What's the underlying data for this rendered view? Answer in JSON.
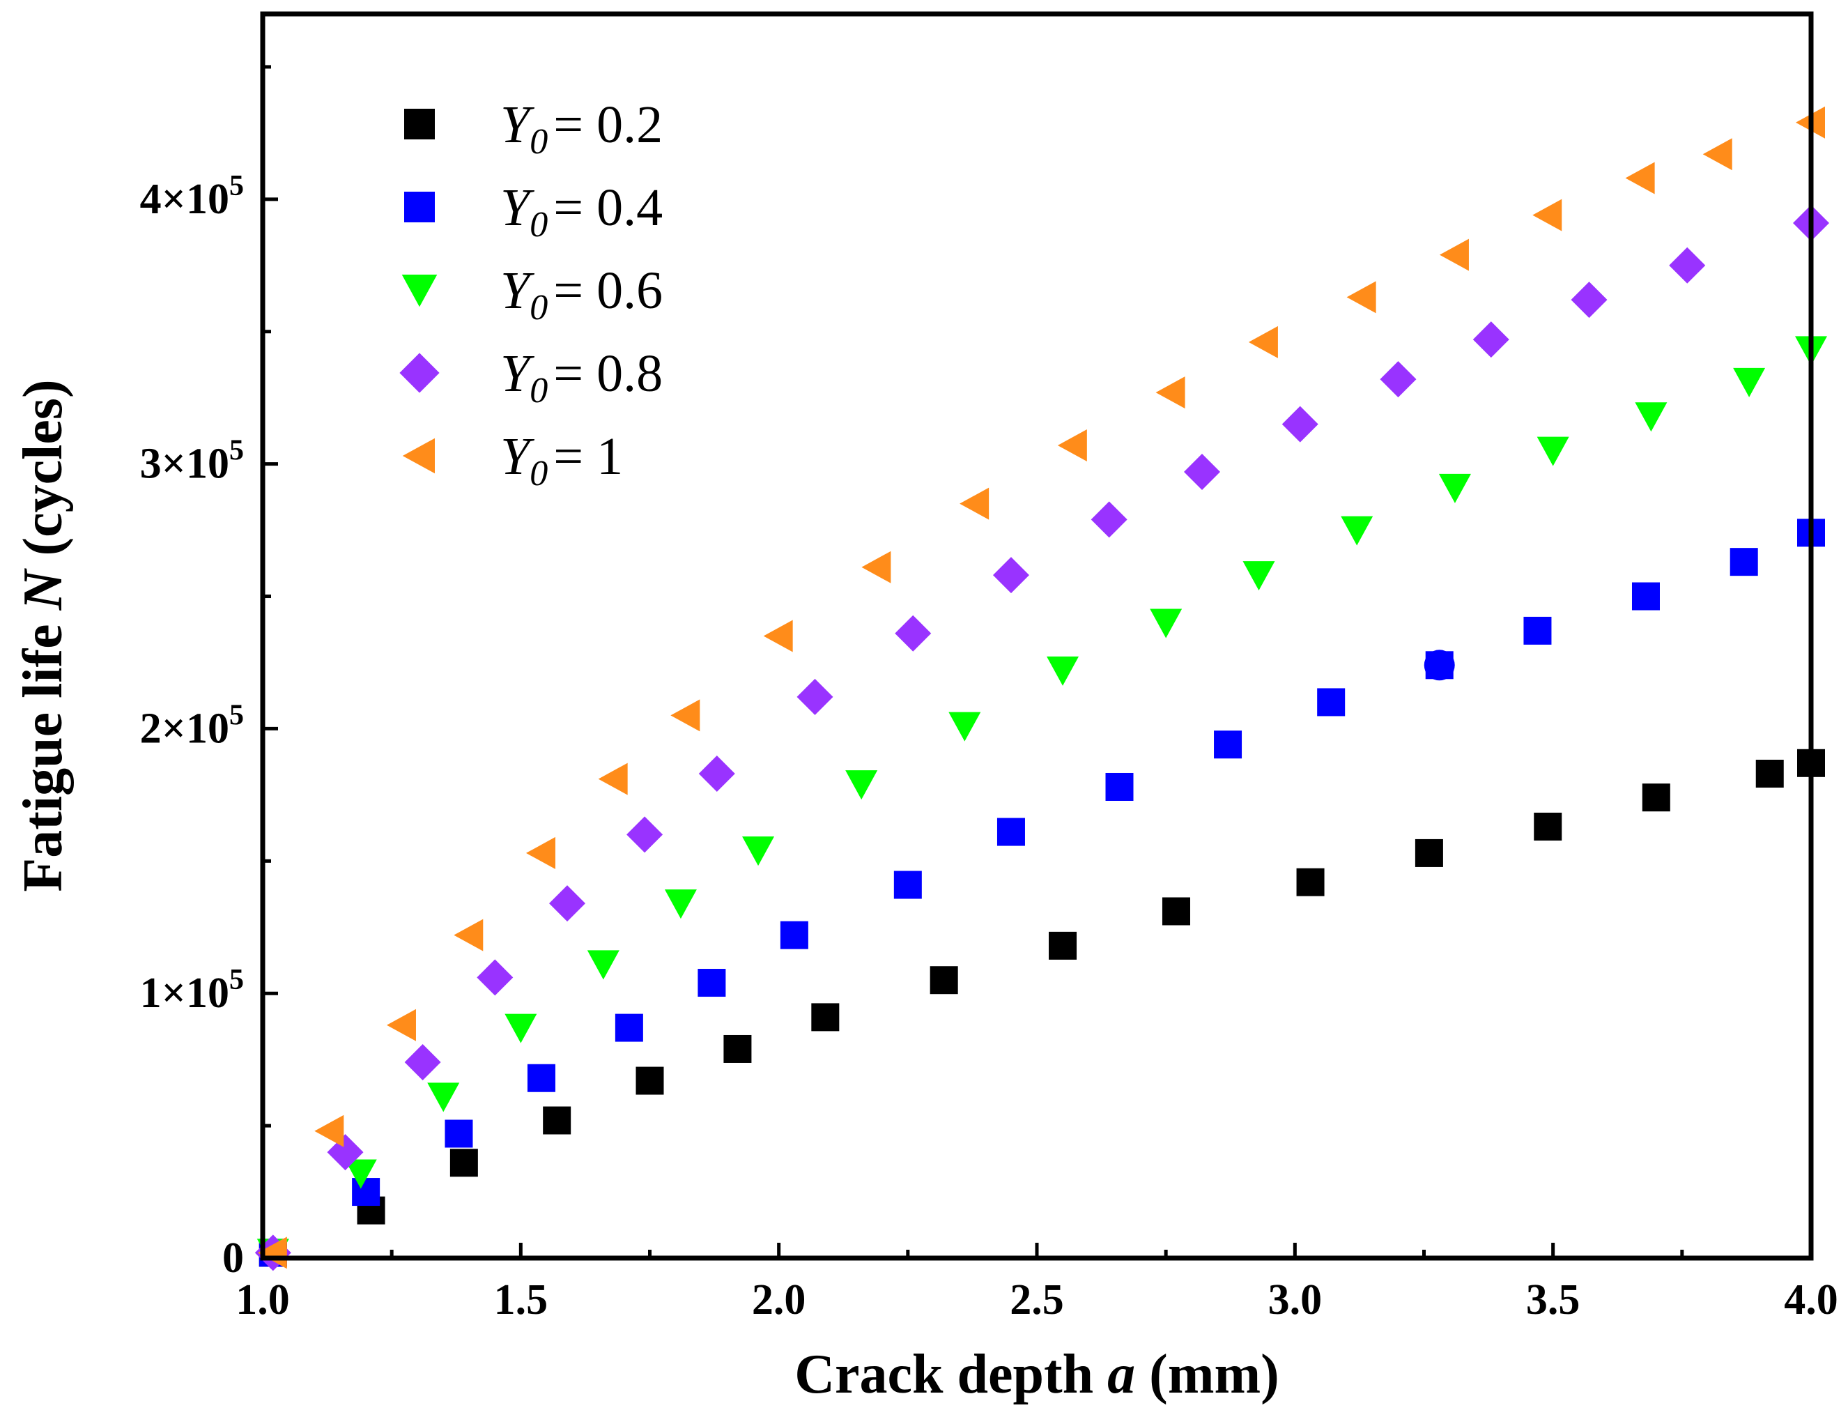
{
  "chart_data": {
    "type": "scatter",
    "title": "",
    "xlabel": {
      "prefix": "Crack depth ",
      "var": "a",
      "suffix": " (mm)"
    },
    "ylabel": {
      "prefix": "Fatigue life ",
      "var": "N",
      "suffix": " (cycles)"
    },
    "xlim": [
      1.0,
      4.0
    ],
    "ylim": [
      0,
      470000
    ],
    "x_ticks": [
      1.0,
      1.5,
      2.0,
      2.5,
      3.0,
      3.5,
      4.0
    ],
    "x_tick_labels": [
      "1.0",
      "1.5",
      "2.0",
      "2.5",
      "3.0",
      "3.5",
      "4.0"
    ],
    "y_ticks": [
      {
        "value": 0,
        "mantissa": "0",
        "exponent": ""
      },
      {
        "value": 100000,
        "mantissa": "1×10",
        "exponent": "5"
      },
      {
        "value": 200000,
        "mantissa": "2×10",
        "exponent": "5"
      },
      {
        "value": 300000,
        "mantissa": "3×10",
        "exponent": "5"
      },
      {
        "value": 400000,
        "mantissa": "4×10",
        "exponent": "5"
      }
    ],
    "grid": false,
    "legend_position": "top-left",
    "series": [
      {
        "name": "Y0 = 0.2",
        "symbol": "Y",
        "subscript": "0",
        "value_label": "= 0.2",
        "marker": "square",
        "color": "#000000",
        "x": [
          1.02,
          1.21,
          1.39,
          1.57,
          1.75,
          1.92,
          2.09,
          2.32,
          2.55,
          2.77,
          3.03,
          3.26,
          3.49,
          3.7,
          3.92,
          4.0
        ],
        "y": [
          2000,
          18000,
          36000,
          52000,
          67000,
          79000,
          91000,
          105000,
          118000,
          131000,
          142000,
          153000,
          163000,
          174000,
          183000,
          187000
        ]
      },
      {
        "name": "Y0 = 0.4",
        "symbol": "Y",
        "subscript": "0",
        "value_label": "= 0.4",
        "marker": "square",
        "color": "#0000ff",
        "x": [
          1.02,
          1.2,
          1.38,
          1.54,
          1.71,
          1.87,
          2.03,
          2.25,
          2.45,
          2.66,
          2.87,
          3.07,
          3.28,
          3.47,
          3.68,
          3.87,
          4.0
        ],
        "y": [
          2000,
          25000,
          47000,
          68000,
          87000,
          104000,
          122000,
          141000,
          161000,
          178000,
          194000,
          210000,
          224000,
          237000,
          250000,
          263000,
          274000
        ]
      },
      {
        "name": "Y0 = 0.6",
        "symbol": "Y",
        "subscript": "0",
        "value_label": "= 0.6",
        "marker": "triangle-down",
        "color": "#00ff00",
        "x": [
          1.02,
          1.19,
          1.35,
          1.5,
          1.66,
          1.81,
          1.96,
          2.16,
          2.36,
          2.55,
          2.75,
          2.93,
          3.12,
          3.31,
          3.5,
          3.69,
          3.88,
          4.0
        ],
        "y": [
          2000,
          32000,
          61000,
          87000,
          111000,
          134000,
          154000,
          179000,
          201000,
          222000,
          240000,
          258000,
          275000,
          291000,
          305000,
          318000,
          331000,
          343000
        ]
      },
      {
        "name": "Y0 = 0.8",
        "symbol": "Y",
        "subscript": "0",
        "value_label": "= 0.8",
        "marker": "diamond",
        "color": "#9933ff",
        "x": [
          1.02,
          1.16,
          1.31,
          1.45,
          1.59,
          1.74,
          1.88,
          2.07,
          2.26,
          2.45,
          2.64,
          2.82,
          3.01,
          3.2,
          3.38,
          3.57,
          3.76,
          4.0
        ],
        "y": [
          2000,
          40000,
          74000,
          106000,
          134000,
          160000,
          183000,
          212000,
          236000,
          258000,
          279000,
          297000,
          315000,
          332000,
          347000,
          362000,
          375000,
          391000
        ]
      },
      {
        "name": "Y0 = 1",
        "symbol": "Y",
        "subscript": "0",
        "value_label": "= 1",
        "marker": "triangle-left",
        "color": "#ff8c1a",
        "x": [
          1.02,
          1.13,
          1.27,
          1.4,
          1.54,
          1.68,
          1.82,
          2.0,
          2.19,
          2.38,
          2.57,
          2.76,
          2.94,
          3.13,
          3.31,
          3.49,
          3.67,
          3.82,
          4.0
        ],
        "y": [
          2000,
          48000,
          88000,
          122000,
          153000,
          181000,
          205000,
          235000,
          261000,
          285000,
          307000,
          327000,
          346000,
          363000,
          379000,
          394000,
          408000,
          417000,
          429000
        ]
      }
    ],
    "annotations": [
      {
        "type": "point",
        "marker": "circle",
        "color": "#0000ff",
        "x": 3.28,
        "y": 224000
      }
    ]
  }
}
